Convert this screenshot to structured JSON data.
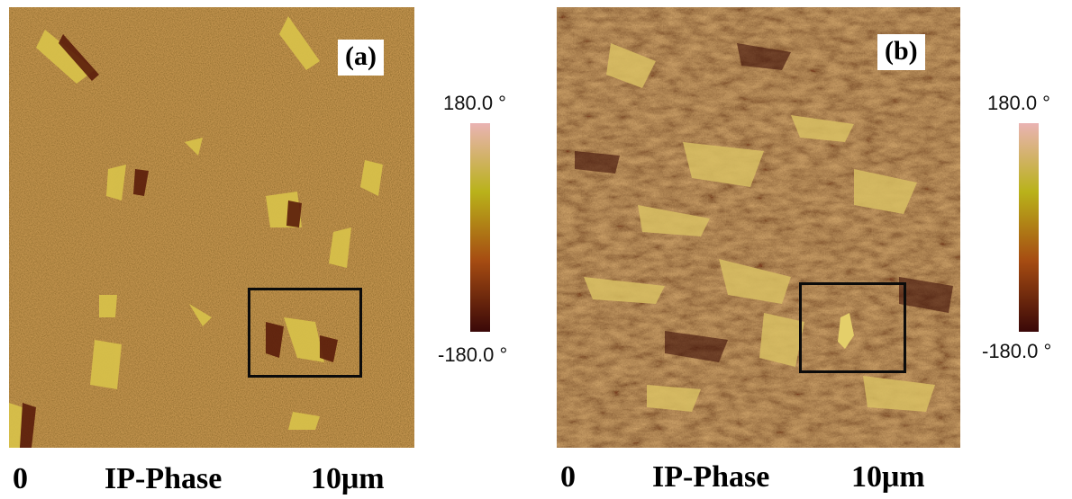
{
  "panels": [
    {
      "label": "(a)",
      "colorbar": {
        "max_label": "180.0 °",
        "min_label": "-180.0 °",
        "colors": [
          "#eab3b3",
          "#b9b21a",
          "#a64c12",
          "#3a0808"
        ]
      },
      "axis": {
        "start": "0",
        "title": "IP-Phase",
        "end": "10μm"
      }
    },
    {
      "label": "(b)",
      "colorbar": {
        "max_label": "180.0 °",
        "min_label": "-180.0 °",
        "colors": [
          "#eab3b3",
          "#b9b21a",
          "#a64c12",
          "#3a0808"
        ]
      },
      "axis": {
        "start": "0",
        "title": "IP-Phase",
        "end": "10μm"
      }
    }
  ]
}
